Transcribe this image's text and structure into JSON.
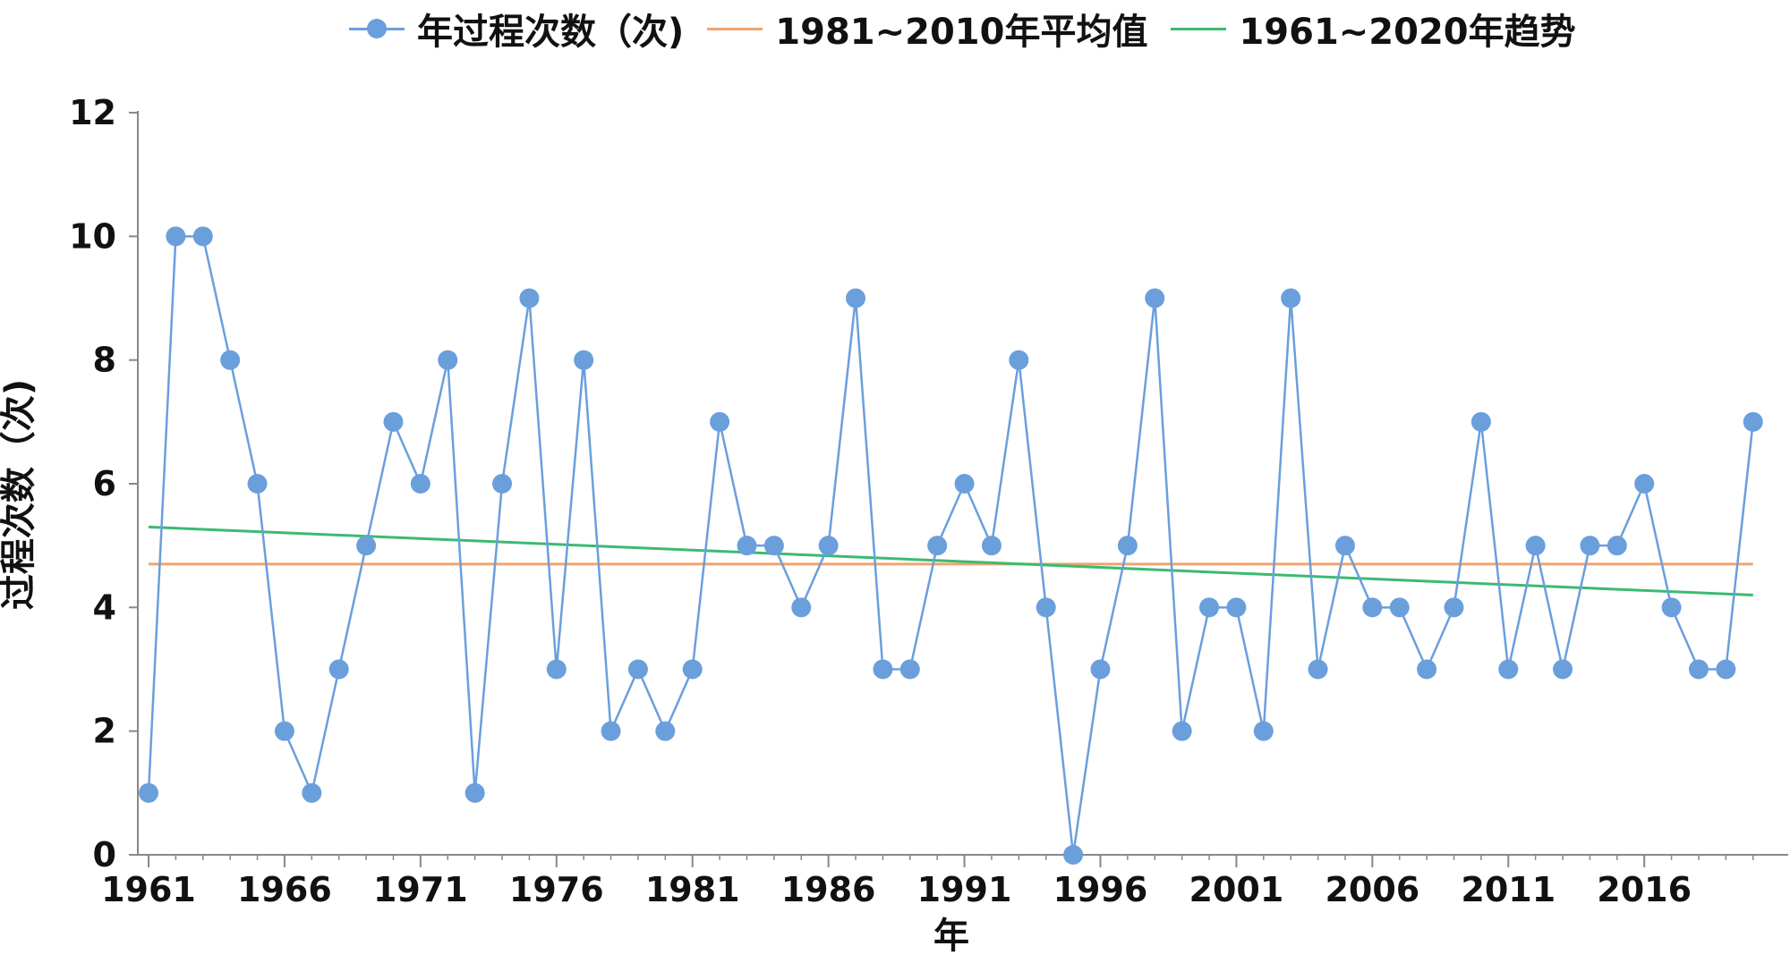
{
  "legend": {
    "series_label": "年过程次数（次)",
    "mean_label": "1981~2010年平均值",
    "trend_label": "1961~2020年趋势"
  },
  "colors": {
    "series": "#6a9fdc",
    "mean": "#f0a46e",
    "trend": "#3cba72",
    "axis": "#888888",
    "text": "#111111"
  },
  "chart_data": {
    "type": "line",
    "title": "",
    "xlabel": "年",
    "ylabel": "过程次数（次)",
    "ylim": [
      0,
      12
    ],
    "xlim": [
      1961,
      2020
    ],
    "yticks": [
      0,
      2,
      4,
      6,
      8,
      10,
      12
    ],
    "xticks": [
      1961,
      1966,
      1971,
      1976,
      1981,
      1986,
      1991,
      1996,
      2001,
      2006,
      2011,
      2016
    ],
    "grid": false,
    "legend_position": "top",
    "x": [
      1961,
      1962,
      1963,
      1964,
      1965,
      1966,
      1967,
      1968,
      1969,
      1970,
      1971,
      1972,
      1973,
      1974,
      1975,
      1976,
      1977,
      1978,
      1979,
      1980,
      1981,
      1982,
      1983,
      1984,
      1985,
      1986,
      1987,
      1988,
      1989,
      1990,
      1991,
      1992,
      1993,
      1994,
      1995,
      1996,
      1997,
      1998,
      1999,
      2000,
      2001,
      2002,
      2003,
      2004,
      2005,
      2006,
      2007,
      2008,
      2009,
      2010,
      2011,
      2012,
      2013,
      2014,
      2015,
      2016,
      2017,
      2018,
      2019,
      2020
    ],
    "series": [
      {
        "name": "年过程次数（次)",
        "values": [
          1,
          10,
          10,
          8,
          6,
          2,
          1,
          3,
          5,
          7,
          6,
          8,
          1,
          6,
          9,
          3,
          8,
          2,
          3,
          2,
          3,
          7,
          5,
          5,
          4,
          5,
          9,
          3,
          3,
          5,
          6,
          5,
          8,
          4,
          0,
          3,
          5,
          9,
          2,
          4,
          4,
          2,
          9,
          3,
          5,
          4,
          4,
          3,
          4,
          7,
          3,
          5,
          3,
          5,
          5,
          6,
          4,
          3,
          3,
          7
        ]
      },
      {
        "name": "1981~2010年平均值",
        "x": [
          1961,
          2020
        ],
        "values": [
          4.7,
          4.7
        ]
      },
      {
        "name": "1961~2020年趋势",
        "x": [
          1961,
          2020
        ],
        "values": [
          5.3,
          4.2
        ]
      }
    ]
  }
}
